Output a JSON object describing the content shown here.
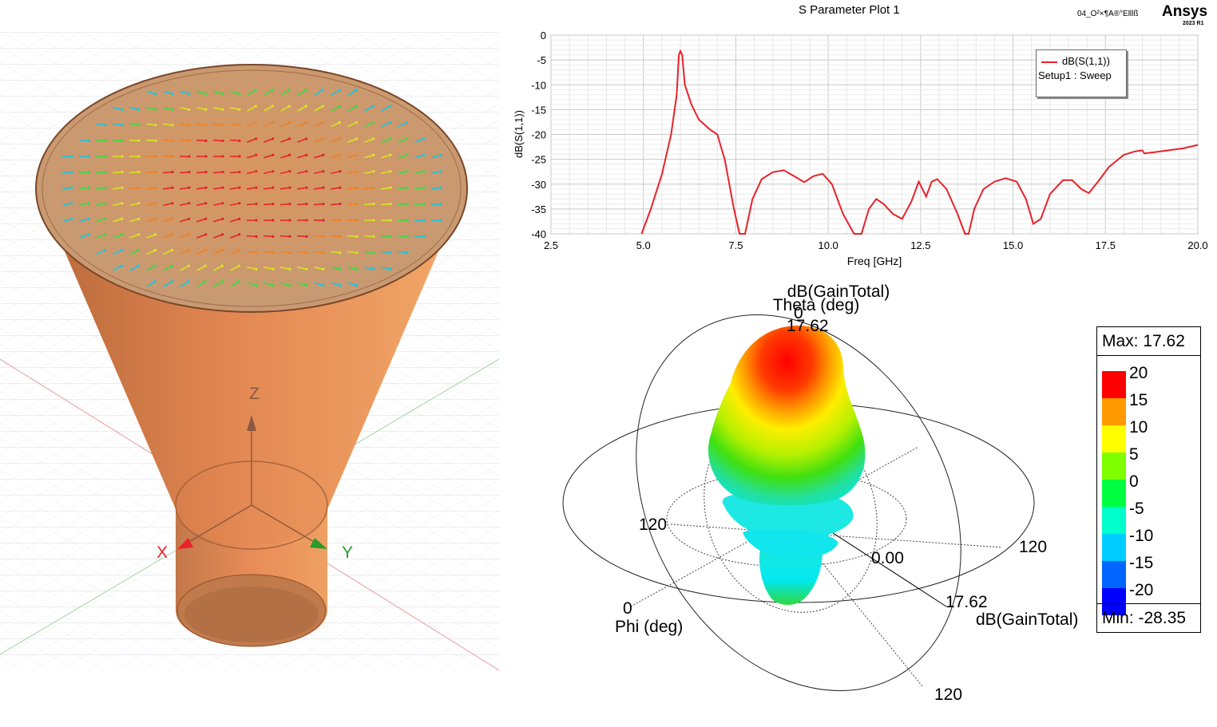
{
  "horn_view": {
    "axis_z": "Z",
    "axis_x": "X",
    "axis_y": "Y",
    "colors": {
      "horn": "#e0894f",
      "field_high": "#e4202a",
      "field_low": "#1f4fd8"
    }
  },
  "sparam_plot": {
    "title": "S Parameter Plot 1",
    "project_label": "04_O²×¶A®°Elllß",
    "brand": "Ansys",
    "brand_version": "2023 R1",
    "legend": {
      "trace": "dB(S(1,1))",
      "setup": "Setup1 : Sweep"
    }
  },
  "chart_data": [
    {
      "type": "line",
      "title": "S Parameter Plot 1",
      "xlabel": "Freq [GHz]",
      "ylabel": "dB(S(1,1))",
      "xlim": [
        2.5,
        20.0
      ],
      "ylim": [
        -40,
        0
      ],
      "xticks": [
        "2.5",
        "5.0",
        "7.5",
        "10.0",
        "12.5",
        "15.0",
        "17.5",
        "20.0"
      ],
      "yticks": [
        "0",
        "-5",
        "-10",
        "-15",
        "-20",
        "-25",
        "-30",
        "-35",
        "-40"
      ],
      "grid": true,
      "legend_position": "top-right",
      "series": [
        {
          "name": "dB(S(1,1))",
          "color": "#e8222a",
          "points": [
            [
              4.95,
              -40
            ],
            [
              5.2,
              -35
            ],
            [
              5.5,
              -28
            ],
            [
              5.75,
              -20
            ],
            [
              5.9,
              -12
            ],
            [
              5.96,
              -4
            ],
            [
              6.0,
              -3.2
            ],
            [
              6.05,
              -4
            ],
            [
              6.12,
              -10
            ],
            [
              6.3,
              -14
            ],
            [
              6.5,
              -17
            ],
            [
              6.8,
              -19
            ],
            [
              7.0,
              -20
            ],
            [
              7.2,
              -25
            ],
            [
              7.45,
              -35
            ],
            [
              7.6,
              -40
            ],
            [
              7.75,
              -40
            ],
            [
              7.95,
              -33
            ],
            [
              8.2,
              -29
            ],
            [
              8.5,
              -27.6
            ],
            [
              8.8,
              -27.2
            ],
            [
              9.1,
              -28.5
            ],
            [
              9.35,
              -29.6
            ],
            [
              9.6,
              -28.4
            ],
            [
              9.85,
              -27.9
            ],
            [
              10.1,
              -30
            ],
            [
              10.4,
              -36
            ],
            [
              10.7,
              -40
            ],
            [
              10.9,
              -40
            ],
            [
              11.1,
              -35
            ],
            [
              11.3,
              -33
            ],
            [
              11.5,
              -34
            ],
            [
              11.75,
              -36
            ],
            [
              12.0,
              -37
            ],
            [
              12.25,
              -33.5
            ],
            [
              12.45,
              -29.5
            ],
            [
              12.55,
              -31
            ],
            [
              12.65,
              -32.5
            ],
            [
              12.8,
              -29.5
            ],
            [
              12.95,
              -29
            ],
            [
              13.2,
              -31
            ],
            [
              13.5,
              -36
            ],
            [
              13.7,
              -40
            ],
            [
              13.8,
              -40
            ],
            [
              13.95,
              -35
            ],
            [
              14.2,
              -31
            ],
            [
              14.5,
              -29.5
            ],
            [
              14.8,
              -28.8
            ],
            [
              15.1,
              -29.5
            ],
            [
              15.35,
              -33
            ],
            [
              15.55,
              -38
            ],
            [
              15.75,
              -37
            ],
            [
              16.0,
              -32
            ],
            [
              16.35,
              -29.2
            ],
            [
              16.6,
              -29.2
            ],
            [
              16.85,
              -31
            ],
            [
              17.05,
              -31.8
            ],
            [
              17.3,
              -29.5
            ],
            [
              17.6,
              -26.5
            ],
            [
              18.0,
              -24.1
            ],
            [
              18.3,
              -23.4
            ],
            [
              18.5,
              -23.2
            ],
            [
              18.55,
              -23.8
            ],
            [
              18.8,
              -23.6
            ],
            [
              19.2,
              -23.2
            ],
            [
              19.6,
              -22.8
            ],
            [
              20.0,
              -22.1
            ]
          ]
        }
      ]
    },
    {
      "type": "3d-radiation-pattern",
      "title": "dB(GainTotal)",
      "axis_theta_label": "Theta (deg)",
      "axis_phi_label": "Phi (deg)",
      "axis_r_label": "dB(GainTotal)",
      "tick_labels": {
        "theta_zero": "0",
        "theta_top": "17.62",
        "left_120": "120",
        "right_120": "120",
        "bottom_120": "120",
        "center": "0.00",
        "r_max": "17.62",
        "phi_zero": "0"
      },
      "max_label": "Max: 17.62",
      "min_label": "Min: -28.35",
      "max_value": 17.62,
      "min_value": -28.35,
      "scale": [
        {
          "label": "20",
          "color": "#ff0000"
        },
        {
          "label": "15",
          "color": "#ff9900"
        },
        {
          "label": "10",
          "color": "#ffff00"
        },
        {
          "label": "5",
          "color": "#7fff00"
        },
        {
          "label": "0",
          "color": "#00ff40"
        },
        {
          "label": "-5",
          "color": "#00ffcc"
        },
        {
          "label": "-10",
          "color": "#00ccff"
        },
        {
          "label": "-15",
          "color": "#0066ff"
        },
        {
          "label": "-20",
          "color": "#0000ff"
        }
      ]
    }
  ]
}
